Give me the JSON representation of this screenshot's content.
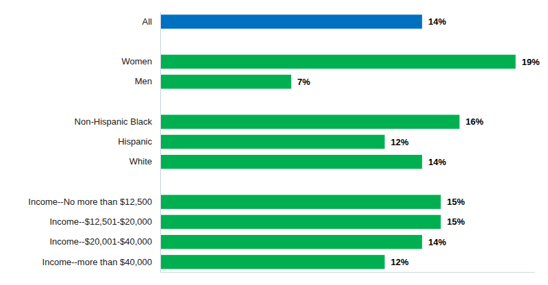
{
  "chart_data": {
    "type": "bar",
    "orientation": "horizontal",
    "categories": [
      "All",
      null,
      "Women",
      "Men",
      null,
      "Non-Hispanic Black",
      "Hispanic",
      "White",
      null,
      "Income--No more than $12,500",
      "Income--$12,501-$20,000",
      "Income--$20,001-$40,000",
      "Income--more than $40,000"
    ],
    "values": [
      14,
      null,
      19,
      7,
      null,
      16,
      12,
      14,
      null,
      15,
      15,
      14,
      12
    ],
    "value_labels": [
      "14%",
      null,
      "19%",
      "7%",
      null,
      "16%",
      "12%",
      "14%",
      null,
      "15%",
      "15%",
      "14%",
      "12%"
    ],
    "colors": [
      "#0070c0",
      null,
      "#00b050",
      "#00b050",
      null,
      "#00b050",
      "#00b050",
      "#00b050",
      null,
      "#00b050",
      "#00b050",
      "#00b050",
      "#00b050"
    ],
    "xlim": [
      0,
      20
    ],
    "xticks": [],
    "tick_labels": "y",
    "data_labels": true,
    "grid": false
  }
}
